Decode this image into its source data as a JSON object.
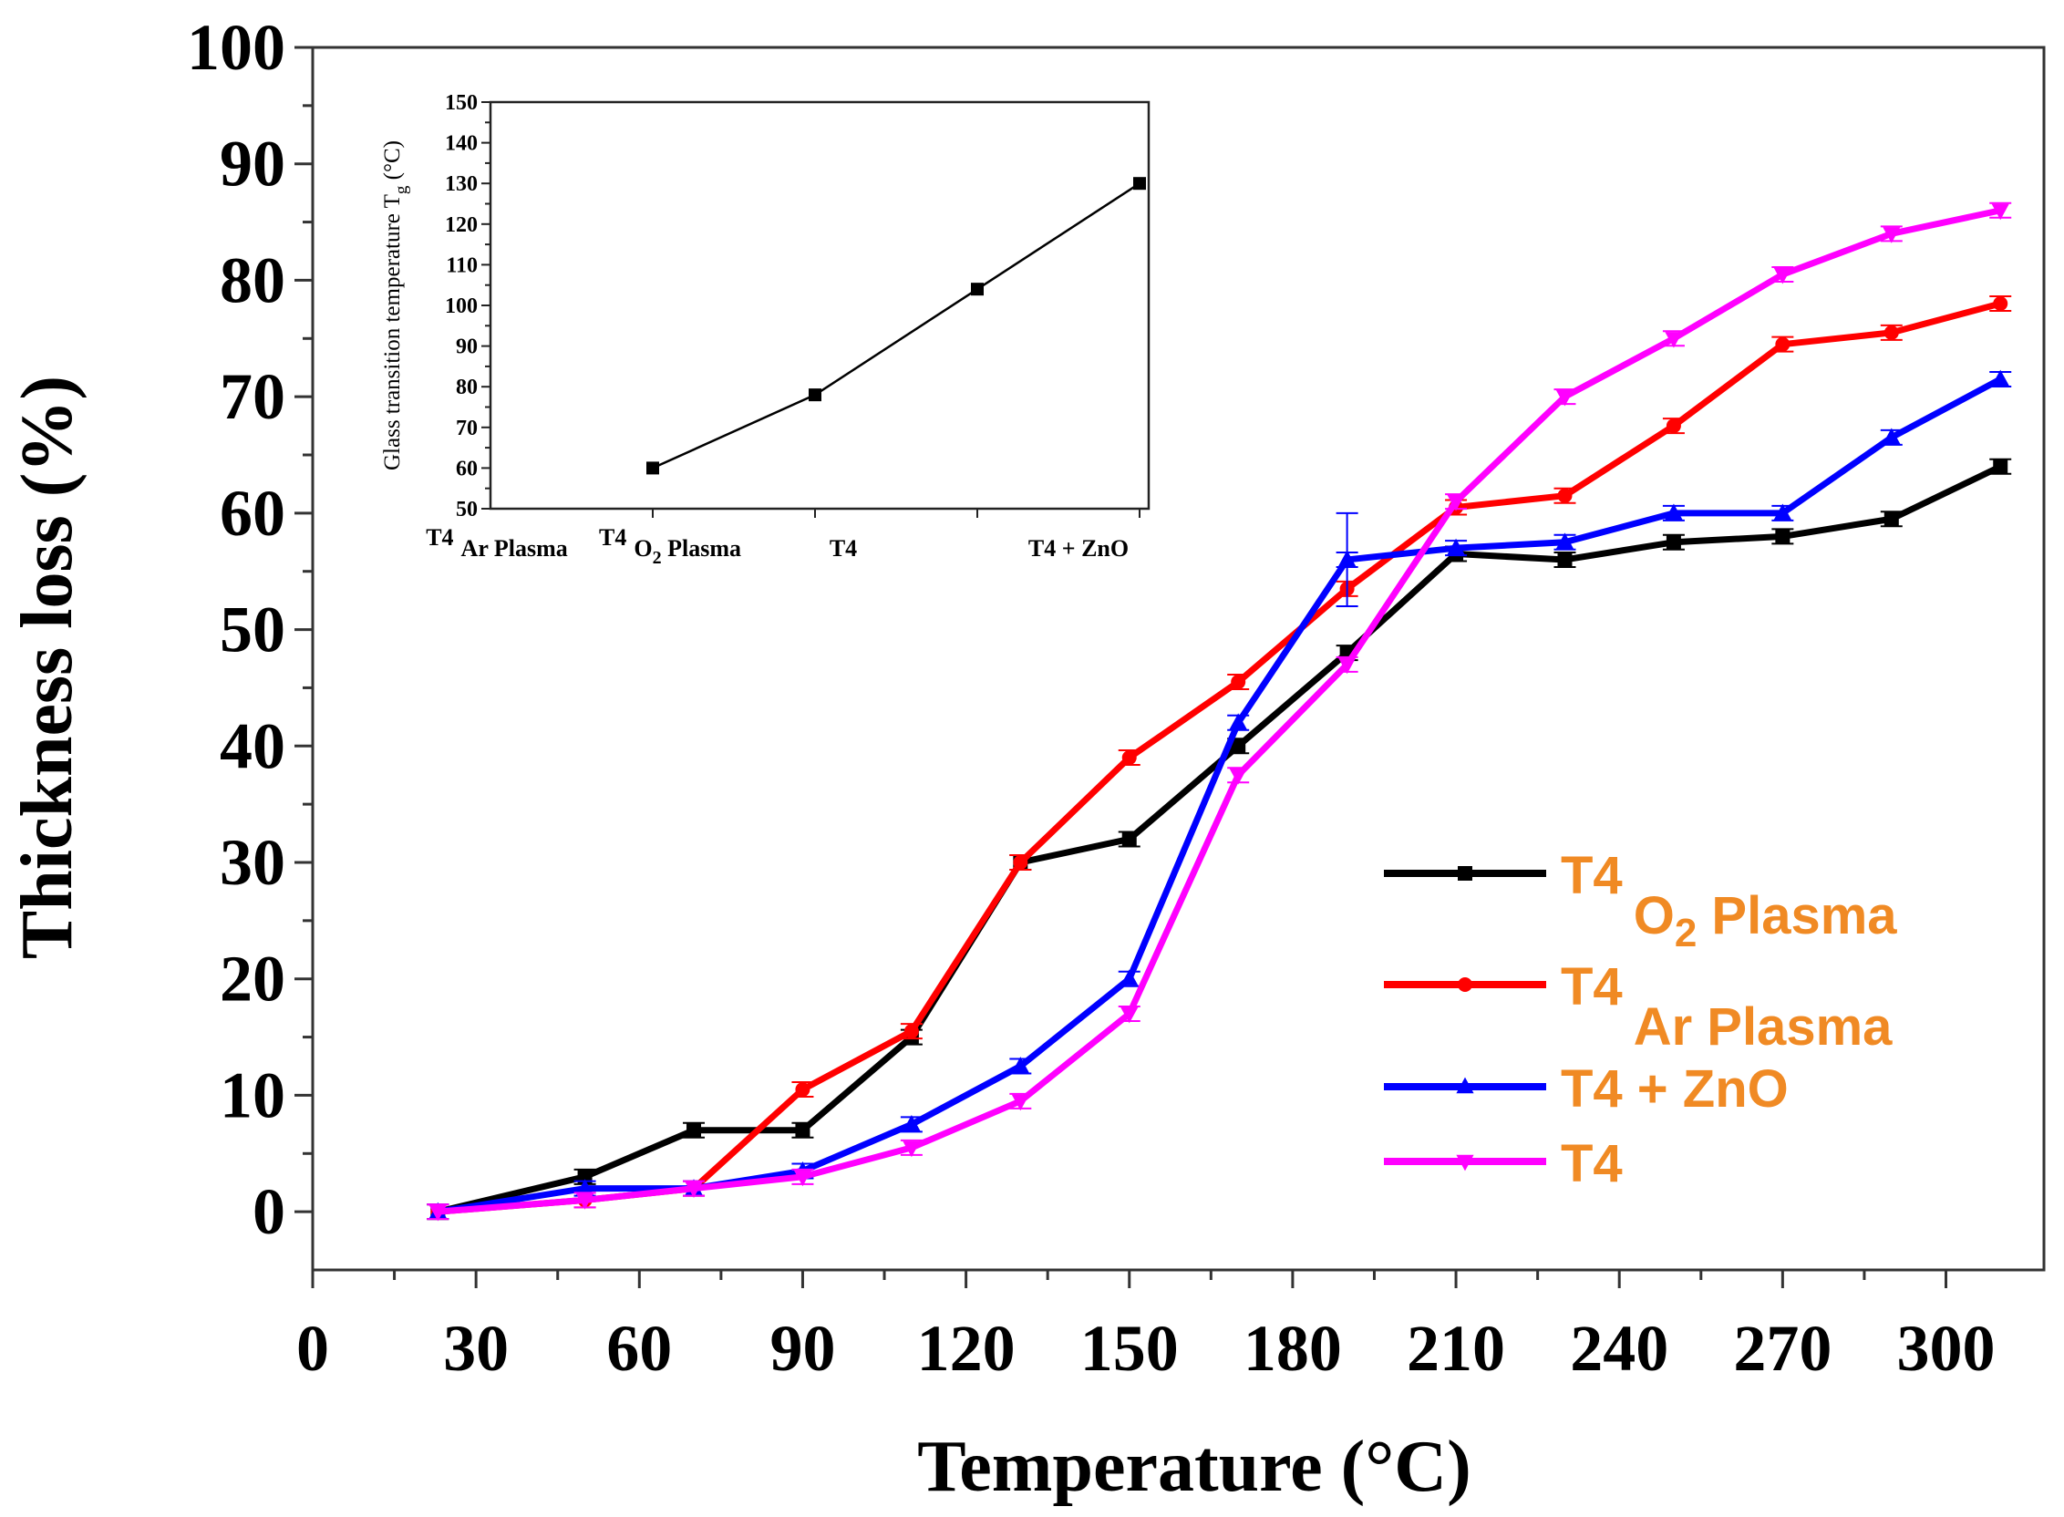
{
  "chart_data": [
    {
      "type": "line",
      "title": "",
      "xlabel": "Temperature (°C)",
      "ylabel": "Thickness loss (%)",
      "xlim": [
        0,
        318
      ],
      "ylim": [
        -5,
        100
      ],
      "xticks": [
        0,
        30,
        60,
        90,
        120,
        150,
        180,
        210,
        240,
        270,
        300
      ],
      "yticks": [
        0,
        10,
        20,
        30,
        40,
        50,
        60,
        70,
        80,
        90,
        100
      ],
      "grid": false,
      "legend_position": "bottom-right",
      "series": [
        {
          "name": "T4 O2 Plasma",
          "label_main": "T4",
          "label_sub": "O",
          "label_subsub": "2",
          "label_tail": " Plasma",
          "color": "#000000",
          "marker": "square",
          "x": [
            23,
            50,
            70,
            90,
            110,
            130,
            150,
            170,
            190,
            210,
            230,
            250,
            270,
            290,
            310
          ],
          "y": [
            0,
            3,
            7,
            7,
            15,
            30,
            32,
            40,
            48,
            56.5,
            56,
            57.5,
            58,
            59.5,
            64
          ]
        },
        {
          "name": "T4 Ar Plasma",
          "label_main": "T4",
          "label_sub": "Ar Plasma",
          "label_subsub": "",
          "label_tail": "",
          "color": "#ff0000",
          "marker": "circle",
          "x": [
            23,
            50,
            70,
            90,
            110,
            130,
            150,
            170,
            190,
            210,
            230,
            250,
            270,
            290,
            310
          ],
          "y": [
            0,
            1,
            2,
            10.5,
            15.5,
            30,
            39,
            45.5,
            53.5,
            60.5,
            61.5,
            67.5,
            74.5,
            75.5,
            78
          ]
        },
        {
          "name": "T4 + ZnO",
          "label_main": "T4 + ZnO",
          "label_sub": "",
          "label_subsub": "",
          "label_tail": "",
          "color": "#0000ff",
          "marker": "triangle-up",
          "x": [
            23,
            50,
            70,
            90,
            110,
            130,
            150,
            170,
            190,
            210,
            230,
            250,
            270,
            290,
            310
          ],
          "y": [
            0,
            2,
            2,
            3.5,
            7.5,
            12.5,
            20,
            42,
            56,
            57,
            57.5,
            60,
            60,
            66.5,
            71.5
          ]
        },
        {
          "name": "T4",
          "label_main": "T4",
          "label_sub": "",
          "label_subsub": "",
          "label_tail": "",
          "color": "#ff00ff",
          "marker": "triangle-down",
          "x": [
            23,
            50,
            70,
            90,
            110,
            130,
            150,
            170,
            190,
            210,
            230,
            250,
            270,
            290,
            310
          ],
          "y": [
            0,
            1,
            2,
            3,
            5.5,
            9.5,
            17,
            37.5,
            47,
            61,
            70,
            75,
            80.5,
            84,
            86
          ]
        }
      ]
    },
    {
      "type": "line",
      "title": "",
      "xlabel": "",
      "ylabel_main": "Glass transition temperature T",
      "ylabel_sub": "g",
      "ylabel_tail": " (°C)",
      "ylim": [
        50,
        150
      ],
      "yticks": [
        50,
        60,
        70,
        80,
        90,
        100,
        110,
        120,
        130,
        140,
        150
      ],
      "categories": [
        {
          "main": "T4",
          "sub": "Ar Plasma",
          "subsub": "",
          "tail": ""
        },
        {
          "main": "T4",
          "sub": "O",
          "subsub": "2",
          "tail": " Plasma"
        },
        {
          "main": "T4",
          "sub": "",
          "subsub": "",
          "tail": ""
        },
        {
          "main": "T4 + ZnO",
          "sub": "",
          "subsub": "",
          "tail": ""
        }
      ],
      "series": [
        {
          "name": "Tg",
          "color": "#000000",
          "marker": "square",
          "values": [
            60,
            78,
            104,
            130
          ]
        }
      ]
    }
  ]
}
